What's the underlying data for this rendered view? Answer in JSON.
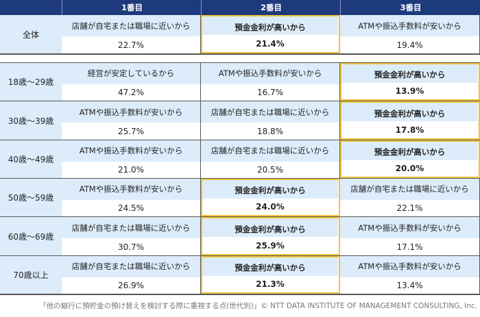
{
  "header": {
    "columns": [
      "1番目",
      "2番目",
      "3番目"
    ]
  },
  "overall": {
    "label": "全体",
    "items": [
      {
        "text": "店舗が自宅または職場に近いから",
        "pct": "22.7%",
        "highlight": false
      },
      {
        "text": "預金金利が高いから",
        "pct": "21.4%",
        "highlight": true
      },
      {
        "text": "ATMや振込手数料が安いから",
        "pct": "19.4%",
        "highlight": false
      }
    ]
  },
  "groups": [
    {
      "label": "18歳～29歳",
      "items": [
        {
          "text": "経営が安定しているから",
          "pct": "47.2%",
          "highlight": false
        },
        {
          "text": "ATMや振込手数料が安いから",
          "pct": "16.7%",
          "highlight": false
        },
        {
          "text": "預金金利が高いから",
          "pct": "13.9%",
          "highlight": true
        }
      ]
    },
    {
      "label": "30歳～39歳",
      "items": [
        {
          "text": "ATMや振込手数料が安いから",
          "pct": "25.7%",
          "highlight": false
        },
        {
          "text": "店舗が自宅または職場に近いから",
          "pct": "18.8%",
          "highlight": false
        },
        {
          "text": "預金金利が高いから",
          "pct": "17.8%",
          "highlight": true
        }
      ]
    },
    {
      "label": "40歳～49歳",
      "items": [
        {
          "text": "ATMや振込手数料が安いから",
          "pct": "21.0%",
          "highlight": false
        },
        {
          "text": "店舗が自宅または職場に近いから",
          "pct": "20.5%",
          "highlight": false
        },
        {
          "text": "預金金利が高いから",
          "pct": "20.0%",
          "highlight": true
        }
      ]
    },
    {
      "label": "50歳～59歳",
      "items": [
        {
          "text": "ATMや振込手数料が安いから",
          "pct": "24.5%",
          "highlight": false
        },
        {
          "text": "預金金利が高いから",
          "pct": "24.0%",
          "highlight": true
        },
        {
          "text": "店舗が自宅または職場に近いから",
          "pct": "22.1%",
          "highlight": false
        }
      ]
    },
    {
      "label": "60歳～69歳",
      "items": [
        {
          "text": "店舗が自宅または職場に近いから",
          "pct": "30.7%",
          "highlight": false
        },
        {
          "text": "預金金利が高いから",
          "pct": "25.9%",
          "highlight": true
        },
        {
          "text": "ATMや振込手数料が安いから",
          "pct": "17.1%",
          "highlight": false
        }
      ]
    },
    {
      "label": "70歳以上",
      "items": [
        {
          "text": "店舗が自宅または職場に近いから",
          "pct": "26.9%",
          "highlight": false
        },
        {
          "text": "預金金利が高いから",
          "pct": "21.3%",
          "highlight": true
        },
        {
          "text": "ATMや振込手数料が安いから",
          "pct": "13.4%",
          "highlight": false
        }
      ]
    }
  ],
  "footer": "「他の銀行に預貯金の預け替えを検討する際に重視する点(世代別)」© NTT DATA INSTITUTE OF MANAGEMENT CONSULTING, Inc.",
  "colors": {
    "header": "#1d3a7c",
    "cell_fill": "#dcecfa",
    "highlight_border": "#f0c33c"
  }
}
